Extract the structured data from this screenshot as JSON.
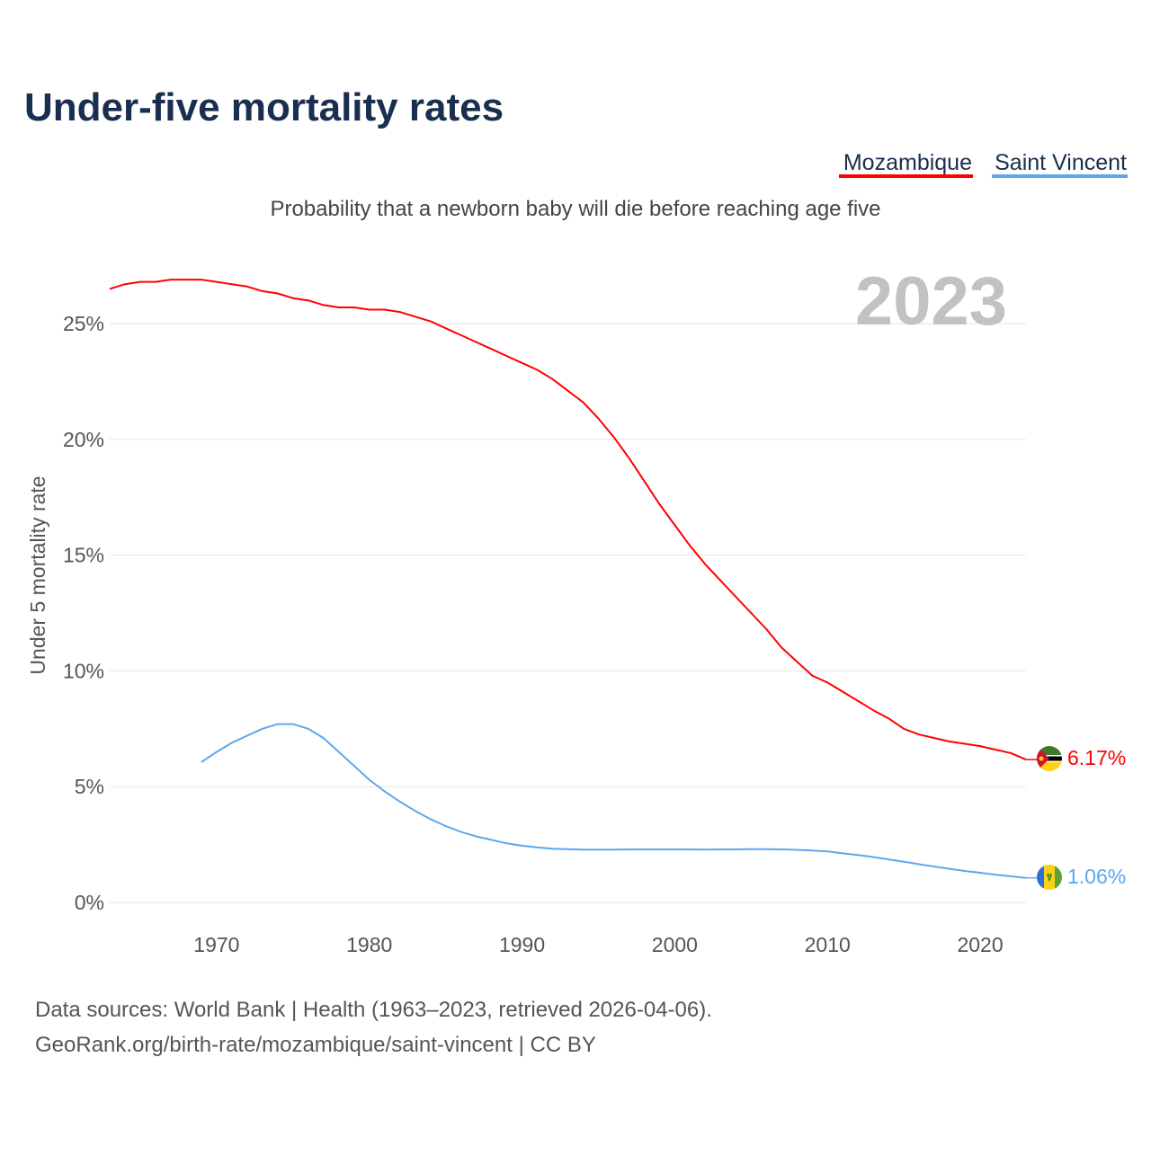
{
  "chart_data": {
    "type": "line",
    "title": "Under-five mortality rates",
    "subtitle": "Probability that a newborn baby will die before reaching age five",
    "ylabel": "Under 5 mortality rate",
    "xlabel": "",
    "year_label": "2023",
    "xlim": [
      1963,
      2023
    ],
    "ylim": [
      0,
      27
    ],
    "x_ticks": [
      1970,
      1980,
      1990,
      2000,
      2010,
      2020
    ],
    "x_tick_labels": [
      "1970",
      "1980",
      "1990",
      "2000",
      "2010",
      "2020"
    ],
    "y_ticks": [
      0,
      5,
      10,
      15,
      20,
      25
    ],
    "y_tick_labels": [
      "0%",
      "5%",
      "10%",
      "15%",
      "20%",
      "25%"
    ],
    "grid": true,
    "legend_position": "top-right",
    "series": [
      {
        "name": "Mozambique",
        "color": "#ff0000",
        "end_label": "6.17%",
        "flag": "mozambique-flag",
        "x": [
          1963,
          1964,
          1965,
          1966,
          1967,
          1968,
          1969,
          1970,
          1971,
          1972,
          1973,
          1974,
          1975,
          1976,
          1977,
          1978,
          1979,
          1980,
          1981,
          1982,
          1983,
          1984,
          1985,
          1986,
          1987,
          1988,
          1989,
          1990,
          1991,
          1992,
          1993,
          1994,
          1995,
          1996,
          1997,
          1998,
          1999,
          2000,
          2001,
          2002,
          2003,
          2004,
          2005,
          2006,
          2007,
          2008,
          2009,
          2010,
          2011,
          2012,
          2013,
          2014,
          2015,
          2016,
          2017,
          2018,
          2019,
          2020,
          2021,
          2022,
          2023
        ],
        "values": [
          26.5,
          26.7,
          26.8,
          26.8,
          26.9,
          26.9,
          26.9,
          26.8,
          26.7,
          26.6,
          26.4,
          26.3,
          26.1,
          26.0,
          25.8,
          25.7,
          25.7,
          25.6,
          25.6,
          25.5,
          25.3,
          25.1,
          24.8,
          24.5,
          24.2,
          23.9,
          23.6,
          23.3,
          23.0,
          22.6,
          22.1,
          21.6,
          20.9,
          20.1,
          19.2,
          18.2,
          17.2,
          16.3,
          15.4,
          14.6,
          13.9,
          13.2,
          12.5,
          11.8,
          11.0,
          10.4,
          9.8,
          9.5,
          9.1,
          8.7,
          8.3,
          7.95,
          7.5,
          7.25,
          7.1,
          6.95,
          6.85,
          6.75,
          6.6,
          6.45,
          6.17
        ]
      },
      {
        "name": "Saint Vincent",
        "color": "#5ba8ee",
        "end_label": "1.06%",
        "flag": "saint-vincent-flag",
        "x": [
          1969,
          1970,
          1971,
          1972,
          1973,
          1974,
          1975,
          1976,
          1977,
          1978,
          1979,
          1980,
          1981,
          1982,
          1983,
          1984,
          1985,
          1986,
          1987,
          1988,
          1989,
          1990,
          1991,
          1992,
          1993,
          1994,
          1995,
          1996,
          1997,
          1998,
          1999,
          2000,
          2001,
          2002,
          2003,
          2004,
          2005,
          2006,
          2007,
          2008,
          2009,
          2010,
          2011,
          2012,
          2013,
          2014,
          2015,
          2016,
          2017,
          2018,
          2019,
          2020,
          2021,
          2022,
          2023
        ],
        "values": [
          6.06,
          6.5,
          6.9,
          7.2,
          7.5,
          7.7,
          7.7,
          7.5,
          7.1,
          6.5,
          5.9,
          5.3,
          4.8,
          4.35,
          3.95,
          3.6,
          3.3,
          3.05,
          2.85,
          2.7,
          2.55,
          2.45,
          2.38,
          2.32,
          2.3,
          2.28,
          2.28,
          2.28,
          2.29,
          2.29,
          2.29,
          2.29,
          2.29,
          2.28,
          2.29,
          2.29,
          2.3,
          2.3,
          2.29,
          2.27,
          2.24,
          2.2,
          2.12,
          2.05,
          1.96,
          1.86,
          1.76,
          1.65,
          1.55,
          1.45,
          1.36,
          1.28,
          1.2,
          1.13,
          1.06
        ]
      }
    ]
  },
  "footer": {
    "source_line": "Data sources: World Bank | Health (1963–2023, retrieved 2026-04-06).",
    "url_line": "GeoRank.org/birth-rate/mozambique/saint-vincent | CC BY"
  }
}
